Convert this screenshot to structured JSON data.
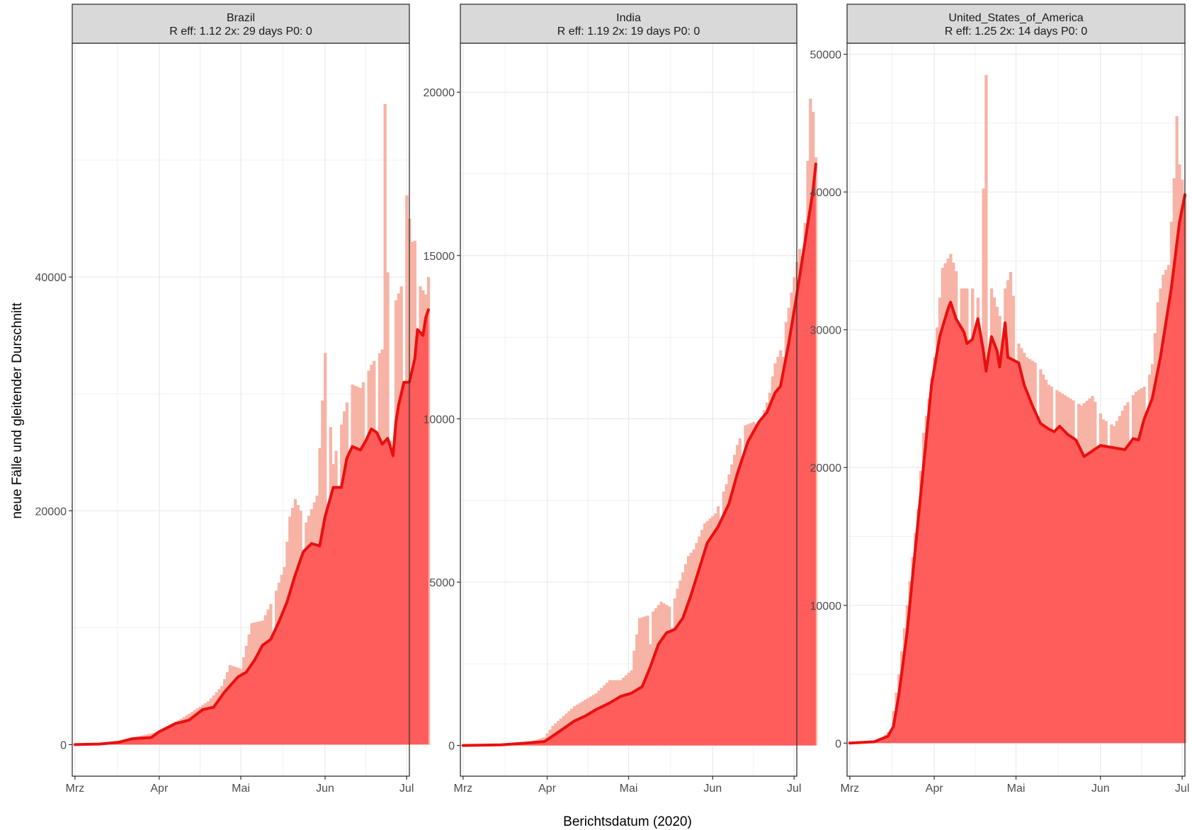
{
  "figure": {
    "x_axis_title": "Berichtsdatum (2020)",
    "y_axis_title": "neue Fälle und gleitender Durschnitt"
  },
  "colors": {
    "bars_raw": "#f7b3a5",
    "bars_fill": "#ff5c5c",
    "trend_line": "#e8100f",
    "grid": "#ebebeb",
    "strip_bg": "#d9d9d9",
    "panel_border": "#333333"
  },
  "chart_data": [
    {
      "type": "area",
      "panel": "Brazil",
      "strip_title": "Brazil",
      "strip_stats": [
        "R eff: 1.12",
        "2x: 29 days",
        "P0: 0"
      ],
      "x_tick_labels": [
        "Mrz",
        "Apr",
        "Mai",
        "Jun",
        "Jul"
      ],
      "x_tick_days": [
        1,
        32,
        62,
        93,
        123
      ],
      "xlim_days": [
        0,
        124
      ],
      "y_tick_values": [
        0,
        20000,
        40000
      ],
      "y_tick_labels": [
        "0",
        "20000",
        "40000"
      ],
      "ylim": [
        -2700,
        60000
      ],
      "trend": [
        [
          1,
          0
        ],
        [
          10,
          50
        ],
        [
          17,
          200
        ],
        [
          22,
          500
        ],
        [
          29,
          600
        ],
        [
          32,
          1100
        ],
        [
          38,
          1800
        ],
        [
          43,
          2100
        ],
        [
          48,
          3000
        ],
        [
          52,
          3200
        ],
        [
          56,
          4500
        ],
        [
          61,
          5800
        ],
        [
          64,
          6200
        ],
        [
          67,
          7200
        ],
        [
          70,
          8500
        ],
        [
          73,
          9000
        ],
        [
          76,
          10500
        ],
        [
          79,
          12200
        ],
        [
          82,
          14500
        ],
        [
          85,
          16500
        ],
        [
          88,
          17200
        ],
        [
          91,
          17000
        ],
        [
          93,
          19500
        ],
        [
          96,
          22000
        ],
        [
          99,
          22000
        ],
        [
          101,
          24500
        ],
        [
          103,
          25500
        ],
        [
          106,
          25200
        ],
        [
          108,
          26000
        ],
        [
          110,
          27000
        ],
        [
          112,
          26700
        ],
        [
          114,
          25700
        ],
        [
          116,
          26200
        ],
        [
          117,
          25500
        ],
        [
          118,
          24700
        ],
        [
          119,
          27500
        ],
        [
          120,
          29000
        ],
        [
          122,
          31000
        ],
        [
          124,
          31000
        ],
        [
          126,
          33000
        ],
        [
          127,
          35500
        ],
        [
          129,
          35000
        ],
        [
          130,
          36500
        ],
        [
          131,
          37200
        ]
      ],
      "bars_peak": [
        [
          1,
          0
        ],
        [
          14,
          80
        ],
        [
          22,
          600
        ],
        [
          30,
          1000
        ],
        [
          40,
          2200
        ],
        [
          50,
          3700
        ],
        [
          55,
          5000
        ],
        [
          58,
          6800
        ],
        [
          62,
          6500
        ],
        [
          66,
          10400
        ],
        [
          70,
          10600
        ],
        [
          74,
          12500
        ],
        [
          78,
          15200
        ],
        [
          80,
          19500
        ],
        [
          82,
          21000
        ],
        [
          86,
          19000
        ],
        [
          90,
          21300
        ],
        [
          93,
          33500
        ],
        [
          96,
          24000
        ],
        [
          100,
          28500
        ],
        [
          103,
          30800
        ],
        [
          106,
          30500
        ],
        [
          110,
          32500
        ],
        [
          114,
          33800
        ],
        [
          115,
          54800
        ],
        [
          117,
          26000
        ],
        [
          119,
          38000
        ],
        [
          121,
          39200
        ],
        [
          123,
          47000
        ],
        [
          125,
          43000
        ],
        [
          127,
          43200
        ],
        [
          128,
          39200
        ],
        [
          130,
          38500
        ],
        [
          131,
          40000
        ]
      ],
      "bars_dips": [
        [
          74,
          8000
        ],
        [
          85,
          14000
        ],
        [
          94,
          10000
        ],
        [
          98,
          17500
        ],
        [
          102,
          16000
        ],
        [
          108,
          20000
        ],
        [
          112,
          17800
        ],
        [
          118,
          17200
        ],
        [
          122,
          24000
        ],
        [
          127,
          30000
        ]
      ]
    },
    {
      "type": "area",
      "panel": "India",
      "strip_title": "India",
      "strip_stats": [
        "R eff: 1.19",
        "2x: 19 days",
        "P0: 0"
      ],
      "x_tick_labels": [
        "Mrz",
        "Apr",
        "Mai",
        "Jun",
        "Jul"
      ],
      "x_tick_days": [
        1,
        32,
        62,
        93,
        123
      ],
      "xlim_days": [
        0,
        124
      ],
      "y_tick_values": [
        0,
        5000,
        10000,
        15000,
        20000
      ],
      "y_tick_labels": [
        "0",
        "5000",
        "10000",
        "15000",
        "20000"
      ],
      "ylim": [
        -940,
        21500
      ],
      "trend": [
        [
          1,
          0
        ],
        [
          15,
          20
        ],
        [
          25,
          80
        ],
        [
          31,
          120
        ],
        [
          36,
          400
        ],
        [
          42,
          750
        ],
        [
          46,
          900
        ],
        [
          50,
          1100
        ],
        [
          55,
          1300
        ],
        [
          59,
          1500
        ],
        [
          63,
          1600
        ],
        [
          67,
          1800
        ],
        [
          70,
          2400
        ],
        [
          73,
          3100
        ],
        [
          76,
          3450
        ],
        [
          79,
          3550
        ],
        [
          82,
          3900
        ],
        [
          85,
          4600
        ],
        [
          88,
          5400
        ],
        [
          91,
          6200
        ],
        [
          95,
          6700
        ],
        [
          99,
          7400
        ],
        [
          102,
          8300
        ],
        [
          106,
          9300
        ],
        [
          110,
          9900
        ],
        [
          113,
          10200
        ],
        [
          116,
          10800
        ],
        [
          118,
          11000
        ],
        [
          121,
          12300
        ],
        [
          124,
          13800
        ],
        [
          127,
          15400
        ],
        [
          130,
          17000
        ],
        [
          131,
          17800
        ]
      ],
      "bars_peak": [
        [
          1,
          0
        ],
        [
          25,
          100
        ],
        [
          31,
          250
        ],
        [
          34,
          600
        ],
        [
          38,
          900
        ],
        [
          42,
          1200
        ],
        [
          46,
          1400
        ],
        [
          50,
          1600
        ],
        [
          55,
          2000
        ],
        [
          59,
          2000
        ],
        [
          63,
          2300
        ],
        [
          64,
          2900
        ],
        [
          66,
          3900
        ],
        [
          70,
          4000
        ],
        [
          74,
          4400
        ],
        [
          78,
          4200
        ],
        [
          80,
          4800
        ],
        [
          84,
          5800
        ],
        [
          86,
          6000
        ],
        [
          90,
          6800
        ],
        [
          94,
          7100
        ],
        [
          98,
          8000
        ],
        [
          102,
          9200
        ],
        [
          105,
          9800
        ],
        [
          108,
          9900
        ],
        [
          110,
          9800
        ],
        [
          113,
          10500
        ],
        [
          116,
          11700
        ],
        [
          118,
          12100
        ],
        [
          121,
          13400
        ],
        [
          124,
          14800
        ],
        [
          127,
          16000
        ],
        [
          129,
          19800
        ],
        [
          130,
          19400
        ],
        [
          131,
          18000
        ]
      ],
      "bars_dips": [
        [
          70,
          3100
        ],
        [
          78,
          3600
        ],
        [
          96,
          6100
        ],
        [
          104,
          8500
        ],
        [
          114,
          10800
        ],
        [
          119,
          11900
        ],
        [
          126,
          14800
        ]
      ]
    },
    {
      "type": "area",
      "panel": "United_States_of_America",
      "strip_title": "United_States_of_America",
      "strip_stats": [
        "R eff: 1.25",
        "2x: 14 days",
        "P0: 0"
      ],
      "x_tick_labels": [
        "Mrz",
        "Apr",
        "Mai",
        "Jun",
        "Jul"
      ],
      "x_tick_days": [
        1,
        32,
        62,
        93,
        123
      ],
      "xlim_days": [
        0,
        124
      ],
      "y_tick_values": [
        0,
        10000,
        20000,
        30000,
        40000,
        50000
      ],
      "y_tick_labels": [
        "0",
        "10000",
        "20000",
        "30000",
        "40000",
        "50000"
      ],
      "ylim": [
        -2400,
        50800
      ],
      "trend": [
        [
          1,
          0
        ],
        [
          10,
          100
        ],
        [
          15,
          500
        ],
        [
          17,
          1200
        ],
        [
          19,
          3500
        ],
        [
          22,
          8000
        ],
        [
          25,
          14000
        ],
        [
          28,
          20000
        ],
        [
          31,
          26000
        ],
        [
          34,
          29500
        ],
        [
          37,
          31500
        ],
        [
          38,
          32000
        ],
        [
          40,
          30800
        ],
        [
          43,
          29800
        ],
        [
          44,
          29000
        ],
        [
          46,
          29300
        ],
        [
          48,
          30800
        ],
        [
          50,
          28500
        ],
        [
          51,
          27000
        ],
        [
          53,
          29500
        ],
        [
          55,
          28500
        ],
        [
          56,
          27300
        ],
        [
          58,
          30500
        ],
        [
          59,
          28000
        ],
        [
          61,
          27800
        ],
        [
          63,
          27600
        ],
        [
          65,
          26000
        ],
        [
          68,
          24500
        ],
        [
          71,
          23200
        ],
        [
          74,
          22800
        ],
        [
          76,
          22600
        ],
        [
          78,
          23000
        ],
        [
          81,
          22400
        ],
        [
          84,
          22000
        ],
        [
          87,
          20800
        ],
        [
          90,
          21200
        ],
        [
          93,
          21600
        ],
        [
          96,
          21500
        ],
        [
          99,
          21400
        ],
        [
          102,
          21300
        ],
        [
          105,
          22100
        ],
        [
          107,
          22000
        ],
        [
          109,
          23500
        ],
        [
          112,
          25000
        ],
        [
          115,
          28000
        ],
        [
          119,
          33000
        ],
        [
          122,
          37800
        ],
        [
          124,
          39800
        ]
      ],
      "bars_peak": [
        [
          1,
          0
        ],
        [
          12,
          200
        ],
        [
          16,
          1000
        ],
        [
          19,
          5000
        ],
        [
          22,
          10000
        ],
        [
          26,
          17000
        ],
        [
          28,
          22500
        ],
        [
          30,
          25000
        ],
        [
          32,
          28000
        ],
        [
          35,
          34500
        ],
        [
          38,
          35500
        ],
        [
          42,
          33000
        ],
        [
          46,
          33000
        ],
        [
          49,
          32000
        ],
        [
          51,
          48500
        ],
        [
          53,
          33000
        ],
        [
          56,
          31000
        ],
        [
          58,
          33000
        ],
        [
          60,
          34200
        ],
        [
          63,
          29000
        ],
        [
          66,
          28000
        ],
        [
          70,
          27500
        ],
        [
          74,
          26000
        ],
        [
          78,
          25500
        ],
        [
          82,
          25000
        ],
        [
          86,
          24500
        ],
        [
          90,
          25200
        ],
        [
          94,
          23500
        ],
        [
          98,
          23000
        ],
        [
          102,
          24500
        ],
        [
          106,
          25500
        ],
        [
          110,
          26000
        ],
        [
          112,
          27500
        ],
        [
          114,
          32000
        ],
        [
          116,
          34000
        ],
        [
          118,
          34700
        ],
        [
          120,
          41000
        ],
        [
          121,
          45500
        ],
        [
          122,
          42000
        ],
        [
          124,
          39800
        ]
      ],
      "bars_dips": [
        [
          41,
          26000
        ],
        [
          45,
          25500
        ],
        [
          47,
          21000
        ],
        [
          49,
          17500
        ],
        [
          52,
          20500
        ],
        [
          57,
          22000
        ],
        [
          62,
          24000
        ],
        [
          70,
          18000
        ],
        [
          76,
          20000
        ],
        [
          84,
          18500
        ],
        [
          92,
          20200
        ],
        [
          96,
          19800
        ],
        [
          104,
          18000
        ],
        [
          110,
          20000
        ]
      ]
    }
  ]
}
